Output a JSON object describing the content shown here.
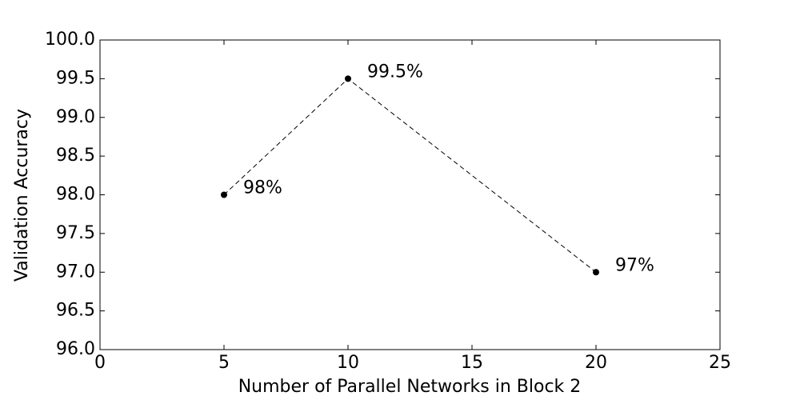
{
  "chart_data": {
    "type": "line",
    "xlabel": "Number of Parallel Networks in Block 2",
    "ylabel": "Validation Accuracy",
    "x": [
      5,
      10,
      20
    ],
    "series": [
      {
        "color": "#000000",
        "values": [
          98,
          99.5,
          97
        ],
        "value_labels": [
          "98%",
          "99.5%",
          "97%"
        ]
      }
    ],
    "xlim": [
      0,
      25
    ],
    "xticks": [
      0,
      5,
      10,
      15,
      20,
      25
    ],
    "ylim": [
      96,
      100
    ],
    "yticks": [
      {
        "value": 96,
        "label": "96.0"
      },
      {
        "value": 96.5,
        "label": "96.5"
      },
      {
        "value": 97,
        "label": "97.0"
      },
      {
        "value": 97.5,
        "label": "97.5"
      },
      {
        "value": 98,
        "label": "98.0"
      },
      {
        "value": 98.5,
        "label": "98.5"
      },
      {
        "value": 99,
        "label": "99.0"
      },
      {
        "value": 99.5,
        "label": "99.5"
      },
      {
        "value": 100,
        "label": "100.0"
      }
    ],
    "grid": false
  }
}
